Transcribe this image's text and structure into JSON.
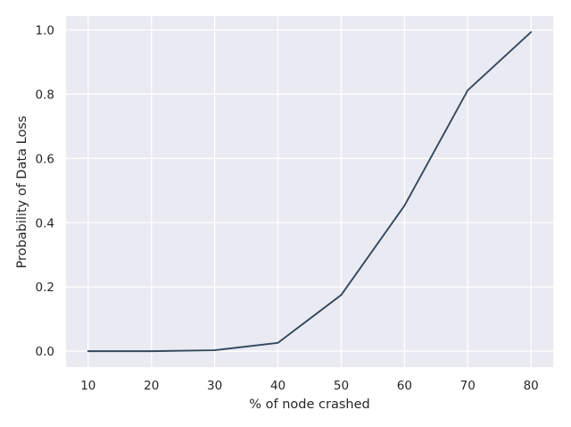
{
  "chart_data": {
    "type": "line",
    "title": "",
    "xlabel": "% of node crashed",
    "ylabel": "Probability of Data Loss",
    "x": [
      10,
      20,
      30,
      40,
      50,
      60,
      70,
      80
    ],
    "series": [
      {
        "values": [
          0.0,
          0.0,
          0.003,
          0.026,
          0.175,
          0.453,
          0.812,
          0.993
        ]
      }
    ],
    "xticks": [
      "10",
      "20",
      "30",
      "40",
      "50",
      "60",
      "70",
      "80"
    ],
    "yticks": [
      "0.0",
      "0.2",
      "0.4",
      "0.6",
      "0.8",
      "1.0"
    ],
    "xlim": [
      6.5,
      83.5
    ],
    "ylim": [
      -0.0497,
      1.043
    ],
    "grid": true,
    "colors": {
      "plot_background": "#eaeaf2",
      "grid": "#ffffff",
      "line": "#34495e"
    }
  }
}
